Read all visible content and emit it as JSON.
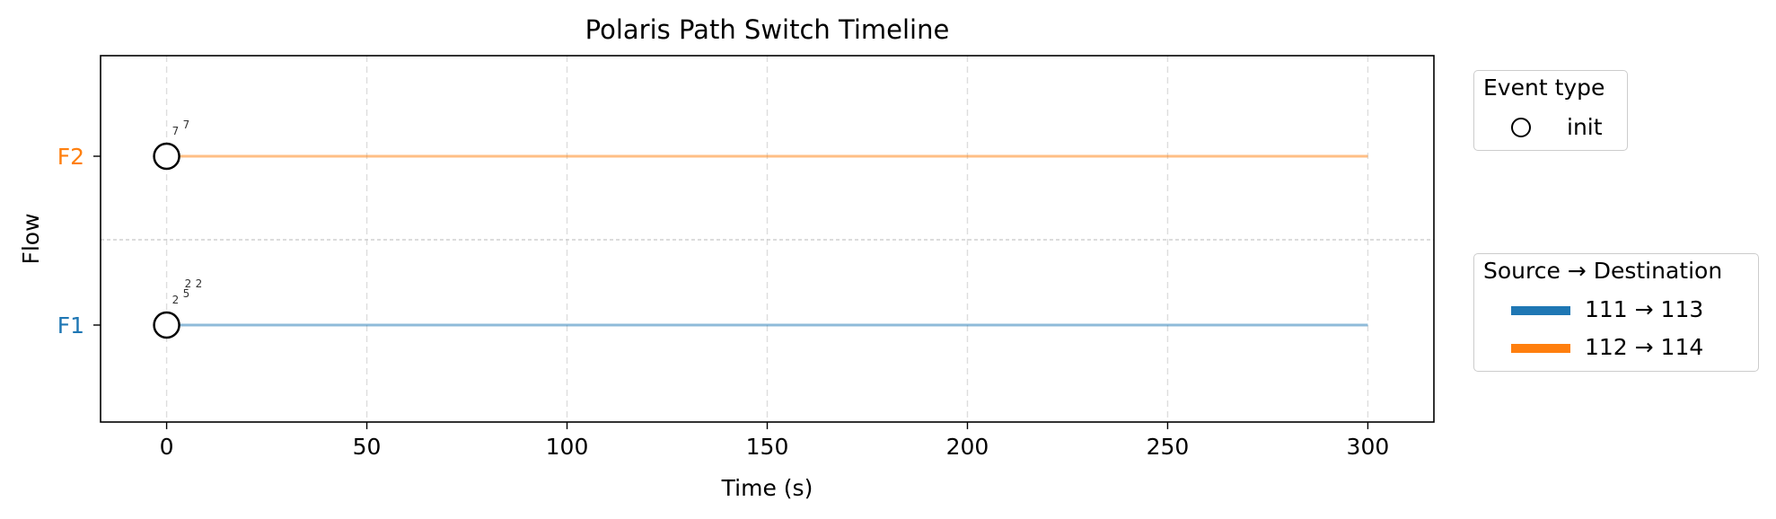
{
  "chart_data": {
    "type": "timeline",
    "title": "Polaris Path Switch Timeline",
    "xlabel": "Time (s)",
    "ylabel": "Flow",
    "xlim": [
      -16.5,
      316.5
    ],
    "xticks": [
      0,
      50,
      100,
      150,
      200,
      250,
      300
    ],
    "grid": true,
    "flows": [
      {
        "name": "F1",
        "color": "#1f77b4",
        "start": 0,
        "end": 300,
        "events": [
          {
            "t": 0,
            "type": "init",
            "annotations": [
              "2",
              "5",
              "2",
              "2"
            ]
          }
        ]
      },
      {
        "name": "F2",
        "color": "#ff7f0e",
        "start": 0,
        "end": 300,
        "events": [
          {
            "t": 0,
            "type": "init",
            "annotations": [
              "7",
              "7"
            ]
          }
        ]
      }
    ],
    "legends": [
      {
        "title": "Event type",
        "placement": "right-top",
        "entries": [
          {
            "marker": "circle-open",
            "label": "init"
          }
        ]
      },
      {
        "title": "Source → Destination",
        "placement": "right-middle",
        "entries": [
          {
            "color": "#1f77b4",
            "label": "111 → 113"
          },
          {
            "color": "#ff7f0e",
            "label": "112 → 114"
          }
        ]
      }
    ]
  }
}
